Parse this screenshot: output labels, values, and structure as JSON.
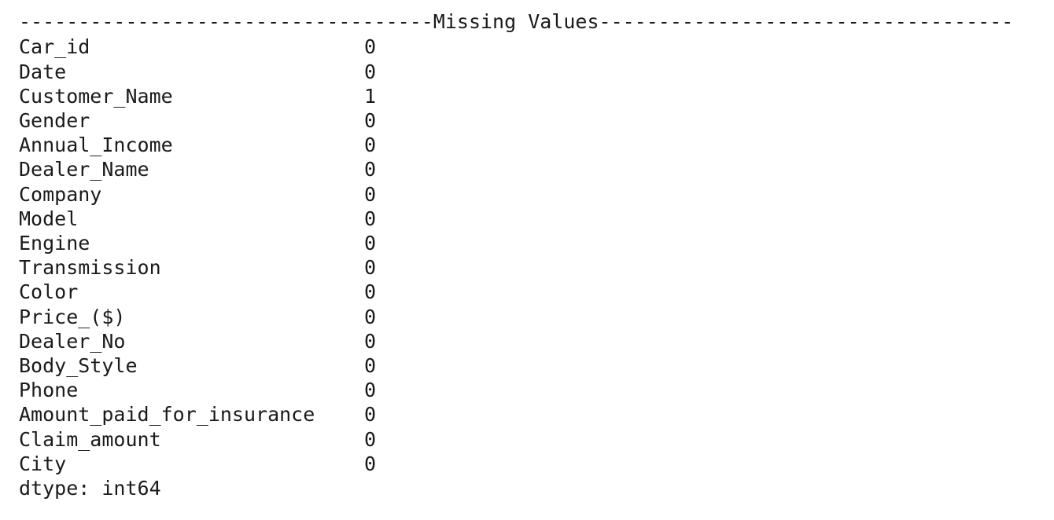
{
  "header": "-----------------------------------Missing Values-----------------------------------",
  "rows": [
    {
      "name": "Car_id",
      "count": 0
    },
    {
      "name": "Date",
      "count": 0
    },
    {
      "name": "Customer_Name",
      "count": 1
    },
    {
      "name": "Gender",
      "count": 0
    },
    {
      "name": "Annual_Income",
      "count": 0
    },
    {
      "name": "Dealer_Name",
      "count": 0
    },
    {
      "name": "Company",
      "count": 0
    },
    {
      "name": "Model",
      "count": 0
    },
    {
      "name": "Engine",
      "count": 0
    },
    {
      "name": "Transmission",
      "count": 0
    },
    {
      "name": "Color",
      "count": 0
    },
    {
      "name": "Price_($)",
      "count": 0
    },
    {
      "name": "Dealer_No",
      "count": 0
    },
    {
      "name": "Body_Style",
      "count": 0
    },
    {
      "name": "Phone",
      "count": 0
    },
    {
      "name": "Amount_paid_for_insurance",
      "count": 0
    },
    {
      "name": "Claim_amount",
      "count": 0
    },
    {
      "name": "City",
      "count": 0
    }
  ],
  "footer": "dtype: int64"
}
